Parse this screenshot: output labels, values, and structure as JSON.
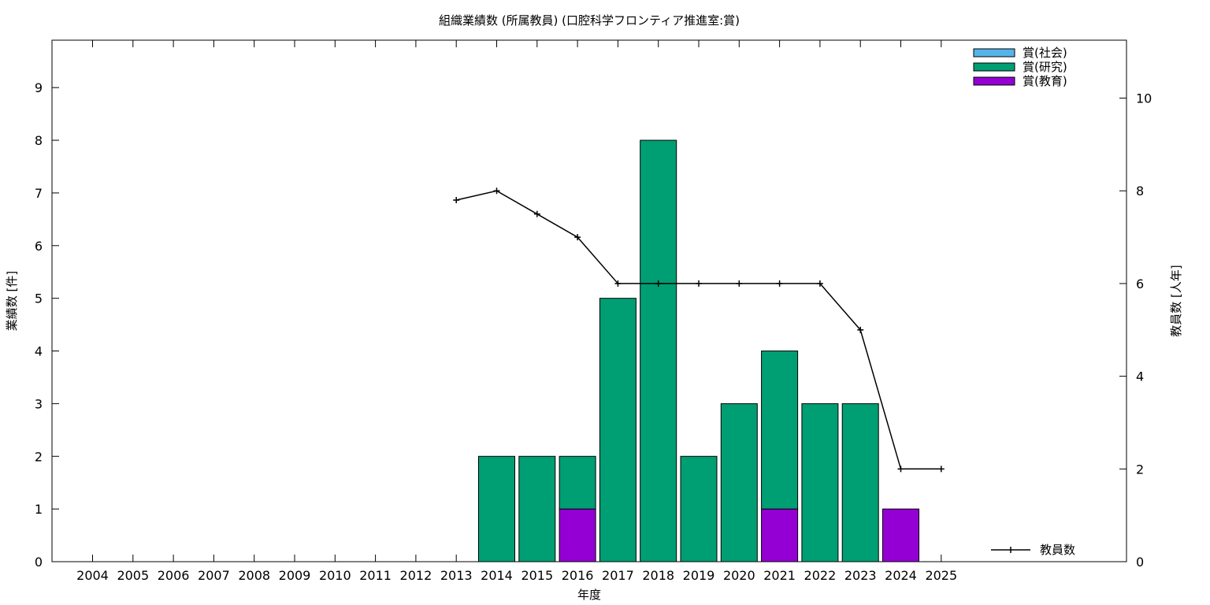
{
  "chart_data": {
    "type": "bar",
    "title": "組織業績数 (所属教員) (口腔科学フロンティア推進室:賞)",
    "xlabel": "年度",
    "ylabel": "業績数 [件]",
    "y2label": "教員数 [人年]",
    "categories": [
      "2004",
      "2005",
      "2006",
      "2007",
      "2008",
      "2009",
      "2010",
      "2011",
      "2012",
      "2013",
      "2014",
      "2015",
      "2016",
      "2017",
      "2018",
      "2019",
      "2020",
      "2021",
      "2022",
      "2023",
      "2024",
      "2025"
    ],
    "ylim": [
      0,
      9.9
    ],
    "y2lim": [
      0,
      11.25
    ],
    "yticks": [
      0,
      1,
      2,
      3,
      4,
      5,
      6,
      7,
      8,
      9
    ],
    "y2ticks": [
      0,
      2,
      4,
      6,
      8,
      10
    ],
    "stacked": true,
    "legend_position": "top-right",
    "series": [
      {
        "name": "賞(教育)",
        "color": "#9400d3",
        "values": [
          0,
          0,
          0,
          0,
          0,
          0,
          0,
          0,
          0,
          0,
          0,
          0,
          1,
          0,
          0,
          0,
          0,
          1,
          0,
          0,
          1,
          0
        ]
      },
      {
        "name": "賞(研究)",
        "color": "#009e73",
        "values": [
          0,
          0,
          0,
          0,
          0,
          0,
          0,
          0,
          0,
          0,
          2,
          2,
          1,
          5,
          8,
          2,
          3,
          3,
          3,
          3,
          0,
          0
        ]
      },
      {
        "name": "賞(社会)",
        "color": "#56b4e9",
        "values": [
          0,
          0,
          0,
          0,
          0,
          0,
          0,
          0,
          0,
          0,
          0,
          0,
          0,
          0,
          0,
          0,
          0,
          0,
          0,
          0,
          0,
          0
        ]
      }
    ],
    "legend_order": [
      "賞(社会)",
      "賞(研究)",
      "賞(教育)"
    ],
    "line_series": {
      "name": "教員数",
      "axis": "y2",
      "color": "#000000",
      "x": [
        "2013",
        "2014",
        "2015",
        "2016",
        "2017",
        "2018",
        "2019",
        "2020",
        "2021",
        "2022",
        "2023",
        "2024",
        "2025"
      ],
      "values": [
        7.8,
        8.0,
        7.5,
        7.0,
        6.0,
        6.0,
        6.0,
        6.0,
        6.0,
        6.0,
        5.0,
        2.0,
        2.0
      ]
    }
  }
}
